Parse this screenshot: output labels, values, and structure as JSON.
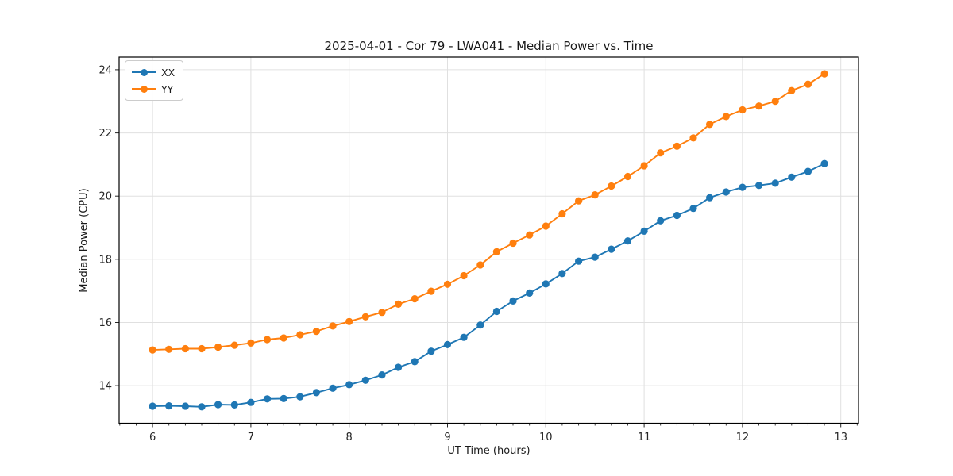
{
  "chart_data": {
    "type": "line",
    "title": "2025-04-01 - Cor 79 - LWA041 - Median Power vs. Time",
    "xlabel": "UT Time (hours)",
    "ylabel": "Median Power (CPU)",
    "xlim": [
      5.66,
      13.18
    ],
    "ylim": [
      12.81,
      24.4
    ],
    "x_ticks": [
      6,
      7,
      8,
      9,
      10,
      11,
      12,
      13
    ],
    "y_ticks": [
      14,
      16,
      18,
      20,
      22,
      24
    ],
    "x_minor_step": 0.1666667,
    "grid": true,
    "legend_position": "upper left",
    "marker": "circle",
    "x": [
      6.0,
      6.1667,
      6.3333,
      6.5,
      6.6667,
      6.8333,
      7.0,
      7.1667,
      7.3333,
      7.5,
      7.6667,
      7.8333,
      8.0,
      8.1667,
      8.3333,
      8.5,
      8.6667,
      8.8333,
      9.0,
      9.1667,
      9.3333,
      9.5,
      9.6667,
      9.8333,
      10.0,
      10.1667,
      10.3333,
      10.5,
      10.6667,
      10.8333,
      11.0,
      11.1667,
      11.3333,
      11.5,
      11.6667,
      11.8333,
      12.0,
      12.1667,
      12.3333,
      12.5,
      12.6667,
      12.8333
    ],
    "series": [
      {
        "name": "XX",
        "color": "#1f77b4",
        "values": [
          13.35,
          13.36,
          13.35,
          13.33,
          13.4,
          13.39,
          13.47,
          13.58,
          13.59,
          13.65,
          13.78,
          13.92,
          14.03,
          14.17,
          14.34,
          14.58,
          14.76,
          15.09,
          15.3,
          15.53,
          15.92,
          16.35,
          16.68,
          16.93,
          17.22,
          17.55,
          17.94,
          18.07,
          18.32,
          18.58,
          18.89,
          19.22,
          19.39,
          19.61,
          19.95,
          20.13,
          20.28,
          20.34,
          20.41,
          20.6,
          20.78,
          21.03
        ]
      },
      {
        "name": "YY",
        "color": "#ff7f0e",
        "values": [
          15.13,
          15.15,
          15.17,
          15.17,
          15.22,
          15.28,
          15.35,
          15.46,
          15.51,
          15.61,
          15.72,
          15.89,
          16.03,
          16.18,
          16.32,
          16.58,
          16.75,
          16.99,
          17.21,
          17.48,
          17.82,
          18.24,
          18.51,
          18.77,
          19.05,
          19.44,
          19.85,
          20.04,
          20.32,
          20.62,
          20.96,
          21.37,
          21.58,
          21.84,
          22.27,
          22.52,
          22.73,
          22.85,
          23.0,
          23.34,
          23.54,
          23.87
        ]
      }
    ]
  }
}
